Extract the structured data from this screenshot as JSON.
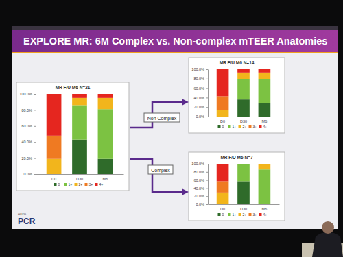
{
  "slide": {
    "title": "EXPLORE MR: 6M Complex vs. Non-complex mTEER Anatomies",
    "arrow_labels": [
      "Non Complex",
      "Complex"
    ],
    "logo": [
      "euro",
      "PCR"
    ]
  },
  "chart_data": [
    {
      "type": "bar",
      "stacked": true,
      "title": "MR F/U M6  N=21",
      "categories": [
        "D0",
        "D30",
        "M6"
      ],
      "series": [
        {
          "name": "0",
          "color": "#2f6b2a",
          "values": [
            0,
            43,
            19
          ]
        },
        {
          "name": "1+",
          "color": "#7cc242",
          "values": [
            0,
            43,
            62
          ]
        },
        {
          "name": "2+",
          "color": "#f2b51c",
          "values": [
            19,
            9,
            14
          ]
        },
        {
          "name": "3+",
          "color": "#ef7a22",
          "values": [
            29,
            0,
            0
          ]
        },
        {
          "name": "4+",
          "color": "#e5261f",
          "values": [
            52,
            5,
            5
          ]
        }
      ],
      "ylim": [
        0,
        100
      ],
      "yticks": [
        {
          "value": 0,
          "label": "0.0%"
        },
        {
          "value": 20,
          "label": "20.0%"
        },
        {
          "value": 40,
          "label": "40.0%"
        },
        {
          "value": 60,
          "label": "60.0%"
        },
        {
          "value": 80,
          "label": "80.0%"
        },
        {
          "value": 100,
          "label": "100.0%"
        }
      ],
      "legend": "bottom"
    },
    {
      "type": "bar",
      "stacked": true,
      "title": "MR F/U M6  N=14",
      "categories": [
        "D0",
        "D30",
        "M6"
      ],
      "series": [
        {
          "name": "0",
          "color": "#2f6b2a",
          "values": [
            0,
            36,
            29
          ]
        },
        {
          "name": "1+",
          "color": "#7cc242",
          "values": [
            0,
            43,
            50
          ]
        },
        {
          "name": "2+",
          "color": "#f2b51c",
          "values": [
            14,
            14,
            14
          ]
        },
        {
          "name": "3+",
          "color": "#ef7a22",
          "values": [
            29,
            0,
            0
          ]
        },
        {
          "name": "4+",
          "color": "#e5261f",
          "values": [
            57,
            7,
            7
          ]
        }
      ],
      "ylim": [
        0,
        100
      ],
      "yticks": [
        {
          "value": 0,
          "label": "0.0%"
        },
        {
          "value": 20,
          "label": "20.0%"
        },
        {
          "value": 40,
          "label": "40.0%"
        },
        {
          "value": 60,
          "label": "60.0%"
        },
        {
          "value": 80,
          "label": "80.0%"
        },
        {
          "value": 100,
          "label": "100.0%"
        }
      ],
      "legend": "bottom"
    },
    {
      "type": "bar",
      "stacked": true,
      "title": "MR F/U M6  N=7",
      "categories": [
        "D0",
        "D30",
        "M6"
      ],
      "series": [
        {
          "name": "0",
          "color": "#2f6b2a",
          "values": [
            0,
            57,
            0
          ]
        },
        {
          "name": "1+",
          "color": "#7cc242",
          "values": [
            0,
            43,
            86
          ]
        },
        {
          "name": "2+",
          "color": "#f2b51c",
          "values": [
            29,
            0,
            14
          ]
        },
        {
          "name": "3+",
          "color": "#ef7a22",
          "values": [
            28,
            0,
            0
          ]
        },
        {
          "name": "4+",
          "color": "#e5261f",
          "values": [
            43,
            0,
            0
          ]
        }
      ],
      "ylim": [
        0,
        100
      ],
      "yticks": [
        {
          "value": 0,
          "label": "0.0%"
        },
        {
          "value": 20,
          "label": "20.0%"
        },
        {
          "value": 40,
          "label": "40.0%"
        },
        {
          "value": 60,
          "label": "60.0%"
        },
        {
          "value": 80,
          "label": "80.0%"
        },
        {
          "value": 100,
          "label": "100.0%"
        }
      ],
      "legend": "bottom"
    }
  ]
}
